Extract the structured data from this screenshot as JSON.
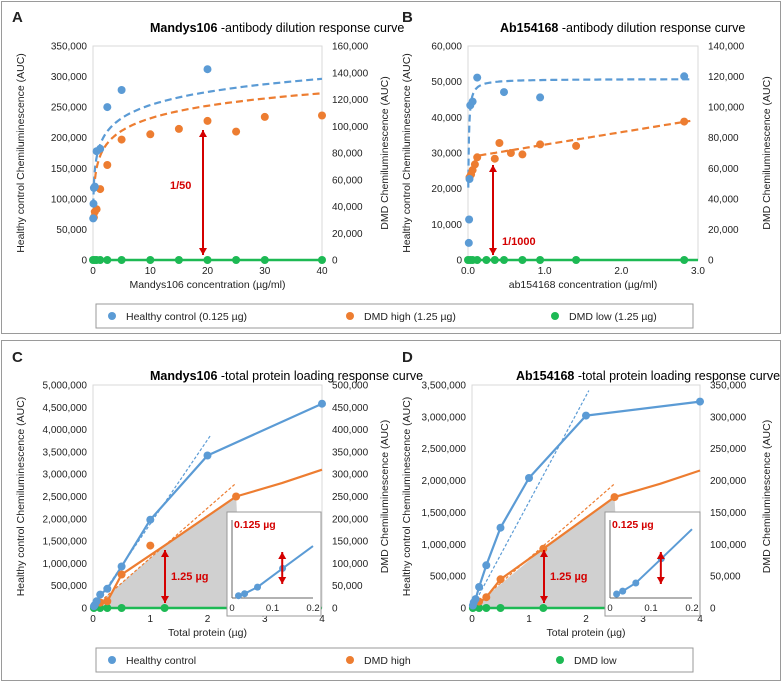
{
  "colors": {
    "healthy": "#5b9bd5",
    "dmd_high": "#ed7d31",
    "dmd_low": "#1db954",
    "arrow": "#d40000",
    "inset_fill": "#c8c8c8",
    "frame": "#9a9a9a"
  },
  "legend_top": {
    "healthy": "Healthy control (0.125 µg)",
    "dmd_high": "DMD high (1.25 µg)",
    "dmd_low": "DMD low (1.25 µg)"
  },
  "legend_bottom": {
    "healthy": "Healthy control",
    "dmd_high": "DMD high",
    "dmd_low": "DMD low"
  },
  "chart_data": [
    {
      "panel": "A",
      "type": "scatter",
      "title_bold": "Mandys106",
      "title_rest": " -antibody dilution response curve",
      "xlabel": "Mandys106 concentration (µg/ml)",
      "ylabel": "Healthy control Chemiluminescence (AUC)",
      "y2label": "DMD Chemiluminescence (AUC)",
      "xlim": [
        0,
        40
      ],
      "ylim": [
        0,
        350000
      ],
      "y2lim": [
        0,
        160000
      ],
      "xticks": [
        "0",
        "10",
        "20",
        "30",
        "40"
      ],
      "yticks": [
        "0",
        "50,000",
        "100,000",
        "150,000",
        "200,000",
        "250,000",
        "300,000",
        "350,000"
      ],
      "y2ticks": [
        "0",
        "20,000",
        "40,000",
        "60,000",
        "80,000",
        "100,000",
        "120,000",
        "140,000",
        "160,000"
      ],
      "annotation": "1/50",
      "series": [
        {
          "name": "Healthy control (0.125 µg)",
          "axis": "left",
          "x": [
            0.04,
            0.08,
            0.16,
            0.31,
            0.63,
            1.25,
            2.5,
            5,
            20
          ],
          "y": [
            68000,
            92000,
            118000,
            120000,
            178000,
            182000,
            250000,
            278000,
            312000
          ]
        },
        {
          "name": "DMD high (1.25 µg)",
          "axis": "right",
          "x": [
            0.16,
            0.31,
            0.63,
            1.25,
            2.5,
            5,
            10,
            15,
            20,
            25,
            30,
            40
          ],
          "y": [
            32000,
            36000,
            38000,
            53000,
            71000,
            90000,
            94000,
            98000,
            104000,
            96000,
            107000,
            108000
          ]
        },
        {
          "name": "DMD low (1.25 µg)",
          "axis": "right",
          "x": [
            0,
            0.31,
            0.63,
            1.25,
            2.5,
            5,
            10,
            15,
            20,
            25,
            30,
            40
          ],
          "y": [
            0,
            0,
            0,
            0,
            0,
            0,
            0,
            0,
            0,
            0,
            0,
            0
          ]
        }
      ]
    },
    {
      "panel": "B",
      "type": "scatter",
      "title_bold": "Ab154168",
      "title_rest": " -antibody dilution response curve",
      "xlabel": "ab154168 concentration (µg/ml)",
      "ylabel": "Healthy control Chemiluminescence (AUC)",
      "y2label": "DMD Chemiluminescence (AUC)",
      "xlim": [
        0,
        3
      ],
      "ylim": [
        0,
        65000
      ],
      "y2lim": [
        0,
        150000
      ],
      "xticks": [
        "0.0",
        "1.0",
        "2.0",
        "3.0"
      ],
      "yticks": [
        "0",
        "10,000",
        "20,000",
        "30,000",
        "40,000",
        "50,000",
        "60,000"
      ],
      "y2ticks": [
        "0",
        "20,000",
        "40,000",
        "60,000",
        "80,000",
        "100,000",
        "120,000",
        "140,000"
      ],
      "annotation": "1/1000",
      "series": [
        {
          "name": "Healthy control (0.125 µg)",
          "axis": "left",
          "x": [
            0.01,
            0.015,
            0.02,
            0.03,
            0.06,
            0.12,
            0.47,
            0.94,
            2.82
          ],
          "y": [
            5200,
            12300,
            24600,
            47000,
            48100,
            55400,
            51000,
            49400,
            55800
          ]
        },
        {
          "name": "DMD high (1.25 µg)",
          "axis": "right",
          "x": [
            0.02,
            0.04,
            0.06,
            0.09,
            0.12,
            0.35,
            0.41,
            0.56,
            0.71,
            0.94,
            1.41,
            2.82
          ],
          "y": [
            58000,
            60000,
            63000,
            67000,
            72000,
            71000,
            82000,
            75000,
            74000,
            81000,
            80000,
            97000
          ]
        },
        {
          "name": "DMD low (1.25 µg)",
          "axis": "right",
          "x": [
            0,
            0.03,
            0.06,
            0.12,
            0.24,
            0.35,
            0.47,
            0.71,
            0.94,
            1.41,
            2.82
          ],
          "y": [
            0,
            0,
            0,
            0,
            0,
            0,
            0,
            0,
            0,
            0,
            0
          ]
        }
      ]
    },
    {
      "panel": "C",
      "type": "scatter",
      "title_bold": "Mandys106",
      "title_rest": " -total protein loading response curve",
      "xlabel": "Total protein (µg)",
      "ylabel": "Healthy control Chemiluminescence (AUC)",
      "y2label": "DMD Chemiluminescence (AUC)",
      "xlim": [
        0,
        4
      ],
      "ylim": [
        0,
        5000000
      ],
      "y2lim": [
        0,
        500000
      ],
      "xticks": [
        "0",
        "1",
        "2",
        "3",
        "4"
      ],
      "yticks": [
        "0",
        "500,000",
        "1,000,000",
        "1,500,000",
        "2,000,000",
        "2,500,000",
        "3,000,000",
        "3,500,000",
        "4,000,000",
        "4,500,000",
        "5,000,000"
      ],
      "y2ticks": [
        "0",
        "50,000",
        "100,000",
        "150,000",
        "200,000",
        "250,000",
        "300,000",
        "350,000",
        "400,000",
        "450,000",
        "500,000"
      ],
      "annotation": "1.25 µg",
      "inset_annotation": "0.125 µg",
      "inset": {
        "xlim": [
          0,
          0.2
        ],
        "xticks": [
          "0",
          "0.1",
          "0.2"
        ],
        "x": [
          0.016,
          0.031,
          0.063,
          0.125
        ],
        "y": [
          60000,
          110000,
          280000,
          760000
        ],
        "ylim": [
          0,
          2000000
        ]
      },
      "series": [
        {
          "name": "Healthy control",
          "axis": "left",
          "x": [
            0.016,
            0.031,
            0.063,
            0.125,
            0.25,
            0.5,
            1,
            2,
            4
          ],
          "y": [
            40000,
            70000,
            150000,
            300000,
            430000,
            930000,
            1980000,
            3420000,
            4580000
          ]
        },
        {
          "name": "DMD high",
          "axis": "right",
          "x": [
            0.125,
            0.25,
            0.5,
            1,
            2.5
          ],
          "y": [
            12000,
            15000,
            75000,
            140000,
            250000
          ]
        },
        {
          "name": "DMD low",
          "axis": "right",
          "x": [
            0.016,
            0.125,
            0.25,
            0.5,
            1.25,
            2.5
          ],
          "y": [
            0,
            0,
            0,
            0,
            0,
            0
          ]
        }
      ]
    },
    {
      "panel": "D",
      "type": "scatter",
      "title_bold": "Ab154168",
      "title_rest": " -total protein loading response curve",
      "xlabel": "Total protein (µg)",
      "ylabel": "Healthy control Chemiluminescence (AUC)",
      "y2label": "DMD Chemiluminescence (AUC)",
      "xlim": [
        0,
        4
      ],
      "ylim": [
        0,
        3500000
      ],
      "y2lim": [
        0,
        350000
      ],
      "xticks": [
        "0",
        "1",
        "2",
        "3",
        "4"
      ],
      "yticks": [
        "0",
        "500,000",
        "1,000,000",
        "1,500,000",
        "2,000,000",
        "2,500,000",
        "3,000,000",
        "3,500,000"
      ],
      "y2ticks": [
        "0",
        "50,000",
        "100,000",
        "150,000",
        "200,000",
        "250,000",
        "300,000",
        "350,000"
      ],
      "annotation": "1.25 µg",
      "inset_annotation": "0.125 µg",
      "inset": {
        "xlim": [
          0,
          0.2
        ],
        "xticks": [
          "0",
          "0.1",
          "0.2"
        ],
        "x": [
          0.016,
          0.031,
          0.063,
          0.125
        ],
        "y": [
          70000,
          120000,
          260000,
          680000
        ],
        "ylim": [
          0,
          1350000
        ]
      },
      "series": [
        {
          "name": "Healthy control",
          "axis": "left",
          "x": [
            0.016,
            0.031,
            0.063,
            0.125,
            0.25,
            0.5,
            1,
            2,
            4
          ],
          "y": [
            40000,
            90000,
            140000,
            330000,
            670000,
            1260000,
            2040000,
            3020000,
            3240000
          ]
        },
        {
          "name": "DMD high",
          "axis": "right",
          "x": [
            0.125,
            0.25,
            0.5,
            1.25,
            2.5
          ],
          "y": [
            10000,
            17000,
            45000,
            93000,
            174000
          ]
        },
        {
          "name": "DMD low",
          "axis": "right",
          "x": [
            0.016,
            0.125,
            0.25,
            0.5,
            1.25,
            2.5
          ],
          "y": [
            0,
            0,
            0,
            0,
            0,
            0
          ]
        }
      ]
    }
  ]
}
